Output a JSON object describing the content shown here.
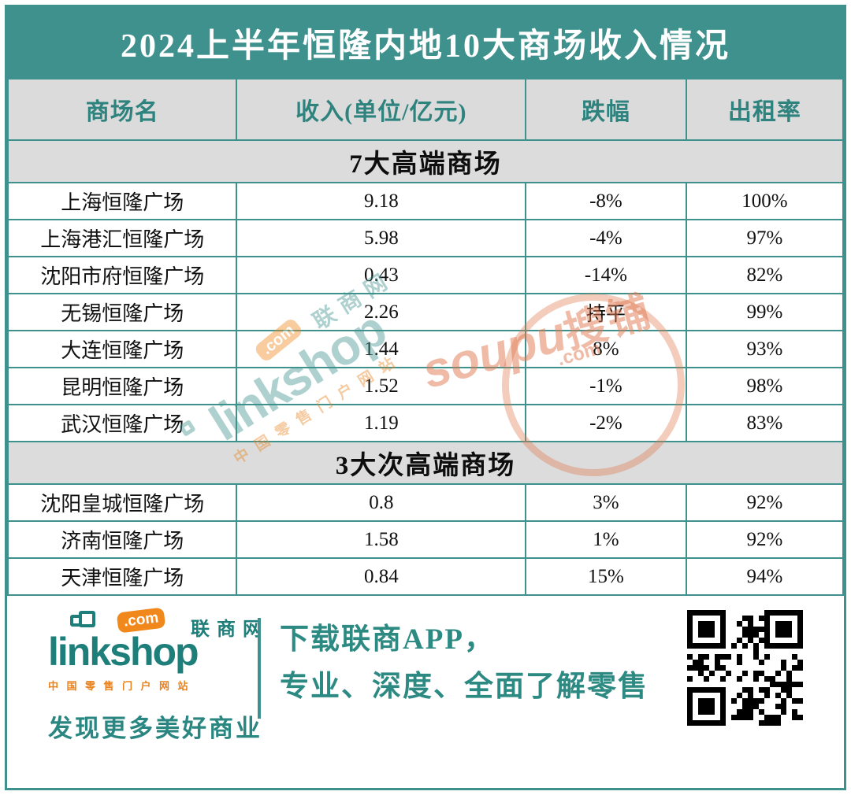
{
  "title": "2024上半年恒隆内地10大商场收入情况",
  "table": {
    "columns": [
      "商场名",
      "收入(单位/亿元)",
      "跌幅",
      "出租率"
    ],
    "sections": [
      {
        "label": "7大高端商场",
        "rows": [
          {
            "name": "上海恒隆广场",
            "revenue": "9.18",
            "change": "-8%",
            "occupancy": "100%"
          },
          {
            "name": "上海港汇恒隆广场",
            "revenue": "5.98",
            "change": "-4%",
            "occupancy": "97%"
          },
          {
            "name": "沈阳市府恒隆广场",
            "revenue": "0.43",
            "change": "-14%",
            "occupancy": "82%"
          },
          {
            "name": "无锡恒隆广场",
            "revenue": "2.26",
            "change": "持平",
            "occupancy": "99%"
          },
          {
            "name": "大连恒隆广场",
            "revenue": "1.44",
            "change": "8%",
            "occupancy": "93%"
          },
          {
            "name": "昆明恒隆广场",
            "revenue": "1.52",
            "change": "-1%",
            "occupancy": "98%"
          },
          {
            "name": "武汉恒隆广场",
            "revenue": "1.19",
            "change": "-2%",
            "occupancy": "83%"
          }
        ]
      },
      {
        "label": "3大次高端商场",
        "rows": [
          {
            "name": "沈阳皇城恒隆广场",
            "revenue": "0.8",
            "change": "3%",
            "occupancy": "92%"
          },
          {
            "name": "济南恒隆广场",
            "revenue": "1.58",
            "change": "1%",
            "occupancy": "92%"
          },
          {
            "name": "天津恒隆广场",
            "revenue": "0.84",
            "change": "15%",
            "occupancy": "94%"
          }
        ]
      }
    ]
  },
  "watermarks": {
    "linkshop": {
      "wordmark": "linkshop",
      "com": ".com",
      "cn": "联商网",
      "tagline": "中国零售门户网站"
    },
    "soupu": {
      "wordmark": "soupu",
      "cn": "搜铺",
      "com": ".com"
    }
  },
  "footer": {
    "logo": {
      "wordmark": "linkshop",
      "com_badge": ".com",
      "cn_name": "联商网",
      "tagline": "中国零售门户网站",
      "slogan": "发现更多美好商业"
    },
    "promo_line1": "下载联商APP，",
    "promo_line2": "专业、深度、全面了解零售",
    "qr_label": "qr-code"
  },
  "colors": {
    "teal_banner": "#3e918c",
    "teal_text": "#2f837e",
    "header_gray": "#dbdbdb",
    "logo_teal": "#1e7e79",
    "logo_orange": "#f0881c",
    "watermark_teal": "#3f948e",
    "watermark_orange": "#e07a50",
    "body_text": "#111111"
  },
  "chart_data": {
    "type": "table",
    "title": "2024上半年恒隆内地10大商场收入情况",
    "columns": [
      "商场名",
      "收入(单位/亿元)",
      "跌幅",
      "出租率"
    ],
    "groups": [
      {
        "group": "7大高端商场",
        "rows": [
          [
            "上海恒隆广场",
            9.18,
            "-8%",
            "100%"
          ],
          [
            "上海港汇恒隆广场",
            5.98,
            "-4%",
            "97%"
          ],
          [
            "沈阳市府恒隆广场",
            0.43,
            "-14%",
            "82%"
          ],
          [
            "无锡恒隆广场",
            2.26,
            "持平",
            "99%"
          ],
          [
            "大连恒隆广场",
            1.44,
            "8%",
            "93%"
          ],
          [
            "昆明恒隆广场",
            1.52,
            "-1%",
            "98%"
          ],
          [
            "武汉恒隆广场",
            1.19,
            "-2%",
            "83%"
          ]
        ]
      },
      {
        "group": "3大次高端商场",
        "rows": [
          [
            "沈阳皇城恒隆广场",
            0.8,
            "3%",
            "92%"
          ],
          [
            "济南恒隆广场",
            1.58,
            "1%",
            "92%"
          ],
          [
            "天津恒隆广场",
            0.84,
            "15%",
            "94%"
          ]
        ]
      }
    ]
  }
}
